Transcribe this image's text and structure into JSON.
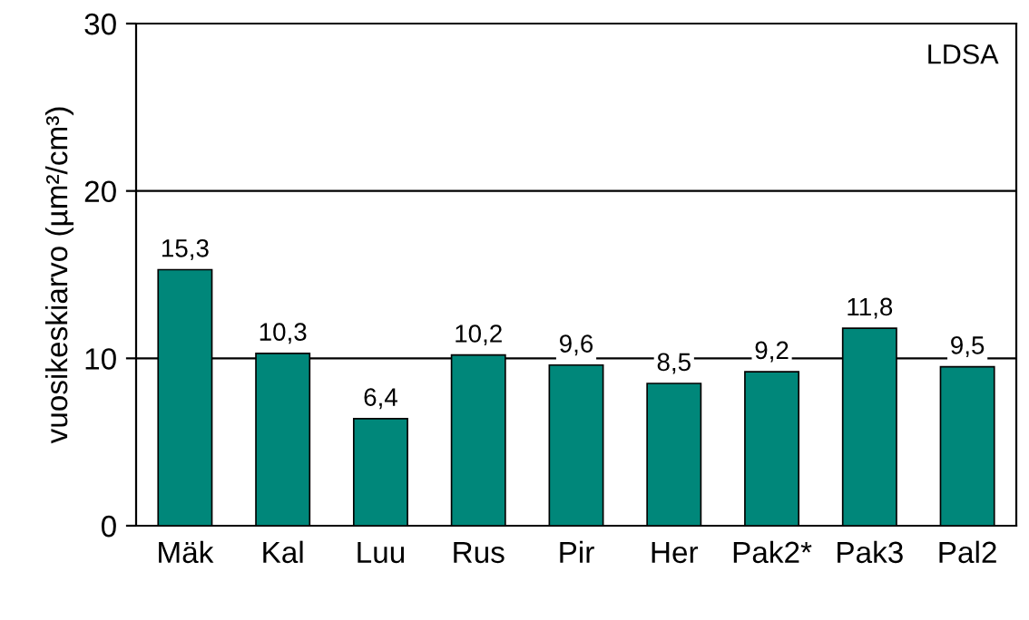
{
  "chart_data": {
    "type": "bar",
    "ylabel": "vuosikeskiarvo (µm²/cm³)",
    "annotations": [
      "LDSA"
    ],
    "categories": [
      "Mäk",
      "Kal",
      "Luu",
      "Rus",
      "Pir",
      "Her",
      "Pak2*",
      "Pak3",
      "Pal2"
    ],
    "values": [
      15.3,
      10.3,
      6.4,
      10.2,
      9.6,
      8.5,
      9.2,
      11.8,
      9.5
    ],
    "value_labels": [
      "15,3",
      "10,3",
      "6,4",
      "10,2",
      "9,6",
      "8,5",
      "9,2",
      "11,8",
      "9,5"
    ],
    "color": "#00877a",
    "ylim": [
      0,
      30
    ],
    "yticks": [
      0,
      10,
      20,
      30
    ],
    "grid": "y"
  }
}
